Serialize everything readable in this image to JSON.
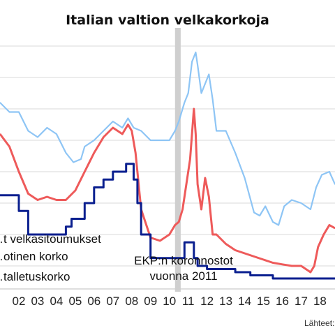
{
  "chart_data": {
    "type": "line",
    "title": "Italian valtion velkakorkoja",
    "xlabel": "",
    "ylabel": "",
    "x_ticks": [
      "02",
      "03",
      "04",
      "05",
      "06",
      "07",
      "08",
      "09",
      "10",
      "11",
      "12",
      "13",
      "14",
      "15",
      "16",
      "17",
      "18"
    ],
    "xlim": [
      2001.5,
      2019.3
    ],
    "ylim": [
      -0.6,
      7.4
    ],
    "grid": "horizontal",
    "gridlines": [
      0,
      1,
      2,
      3,
      4,
      5,
      6,
      7
    ],
    "legend_placement": "left, inline text",
    "series": [
      {
        "name": "…t velkasitoumukset",
        "color": "#8ec5f5",
        "x": [
          2001.5,
          2002.0,
          2002.5,
          2003.0,
          2003.5,
          2004.0,
          2004.5,
          2005.0,
          2005.4,
          2005.8,
          2006.0,
          2006.5,
          2007.0,
          2007.5,
          2008.0,
          2008.3,
          2008.6,
          2009.0,
          2009.5,
          2010.0,
          2010.5,
          2010.8,
          2011.0,
          2011.3,
          2011.5,
          2011.7,
          2011.9,
          2012.0,
          2012.2,
          2012.4,
          2012.6,
          2012.8,
          2013.0,
          2013.5,
          2014.0,
          2014.5,
          2015.0,
          2015.3,
          2015.6,
          2016.0,
          2016.3,
          2016.6,
          2017.0,
          2017.5,
          2018.0,
          2018.3,
          2018.6,
          2019.0,
          2019.3
        ],
        "y": [
          5.2,
          4.9,
          4.9,
          4.3,
          4.1,
          4.4,
          4.2,
          3.6,
          3.3,
          3.4,
          3.8,
          4.0,
          4.3,
          4.6,
          4.4,
          4.7,
          4.4,
          4.3,
          4.0,
          4.0,
          4.0,
          4.3,
          4.6,
          5.2,
          5.5,
          6.5,
          6.8,
          6.4,
          5.5,
          5.8,
          6.1,
          5.3,
          4.3,
          4.3,
          3.6,
          2.8,
          1.7,
          1.6,
          1.9,
          1.4,
          1.3,
          1.9,
          2.1,
          2.0,
          1.8,
          2.5,
          2.9,
          3.0,
          2.6
        ]
      },
      {
        "name": "…otinen korko",
        "color": "#ee5a5a",
        "x": [
          2001.5,
          2002.0,
          2002.5,
          2003.0,
          2003.5,
          2004.0,
          2004.5,
          2005.0,
          2005.5,
          2006.0,
          2006.5,
          2007.0,
          2007.5,
          2008.0,
          2008.3,
          2008.5,
          2008.7,
          2009.0,
          2009.5,
          2010.0,
          2010.5,
          2010.8,
          2011.0,
          2011.2,
          2011.4,
          2011.6,
          2011.8,
          2011.9,
          2012.0,
          2012.2,
          2012.4,
          2012.6,
          2012.8,
          2013.0,
          2013.5,
          2014.0,
          2014.5,
          2015.0,
          2015.5,
          2016.0,
          2016.5,
          2017.0,
          2017.5,
          2018.0,
          2018.2,
          2018.4,
          2018.7,
          2019.0,
          2019.3
        ],
        "y": [
          4.2,
          3.8,
          3.0,
          2.3,
          2.1,
          2.2,
          2.1,
          2.1,
          2.4,
          3.0,
          3.6,
          4.1,
          4.4,
          4.2,
          4.5,
          4.3,
          3.6,
          1.8,
          0.9,
          0.8,
          1.0,
          1.3,
          1.4,
          1.8,
          2.6,
          3.4,
          5.0,
          4.2,
          2.6,
          1.8,
          2.8,
          2.2,
          1.0,
          1.0,
          0.7,
          0.5,
          0.4,
          0.3,
          0.2,
          0.1,
          0.05,
          0.0,
          0.0,
          -0.2,
          0.0,
          0.6,
          1.0,
          1.3,
          1.2
        ]
      },
      {
        "name": "…talletuskorko",
        "color": "#0a1f8f",
        "x": [
          2001.5,
          2002.5,
          2002.5,
          2003.0,
          2003.0,
          2005.0,
          2005.0,
          2005.3,
          2005.3,
          2006.0,
          2006.0,
          2006.5,
          2006.5,
          2007.0,
          2007.0,
          2007.5,
          2007.5,
          2008.2,
          2008.2,
          2008.6,
          2008.6,
          2008.8,
          2008.8,
          2009.0,
          2009.0,
          2009.5,
          2009.5,
          2011.3,
          2011.3,
          2011.8,
          2011.8,
          2012.0,
          2012.0,
          2012.5,
          2012.5,
          2014.0,
          2014.0,
          2014.8,
          2014.8,
          2016.0,
          2016.0,
          2019.3
        ],
        "y": [
          2.25,
          2.25,
          1.75,
          1.75,
          1.0,
          1.0,
          1.25,
          1.25,
          1.5,
          1.5,
          2.0,
          2.0,
          2.5,
          2.5,
          2.75,
          2.75,
          3.0,
          3.0,
          3.25,
          3.25,
          2.75,
          2.75,
          2.0,
          2.0,
          1.0,
          1.0,
          0.25,
          0.25,
          0.75,
          0.75,
          0.25,
          0.25,
          0.0,
          0.0,
          -0.1,
          -0.1,
          -0.2,
          -0.2,
          -0.3,
          -0.3,
          -0.4,
          -0.4
        ]
      }
    ],
    "annotations": [
      {
        "type": "shaded-band",
        "x_start": 2010.8,
        "x_end": 2011.1,
        "color": "#cfcfcf"
      },
      {
        "type": "text",
        "lines": [
          "EKP:n koronnostot",
          "vuonna 2011"
        ]
      }
    ]
  },
  "source_label": "Lähteet:"
}
